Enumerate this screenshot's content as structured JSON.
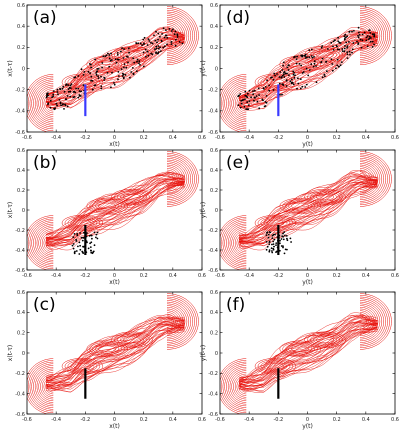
{
  "chart_data": [
    {
      "panel": "a",
      "type": "scatter",
      "label": "(a)",
      "xlabel": "x(t)",
      "ylabel": "x(t-τ)",
      "xlim": [
        -0.6,
        0.6
      ],
      "ylim": [
        -0.6,
        0.6
      ],
      "xticks": [
        "-0.6",
        "-0.4",
        "-0.2",
        "0",
        "0.2",
        "0.4",
        "0.6"
      ],
      "yticks": [
        "-0.6",
        "-0.4",
        "-0.2",
        "0",
        "0.2",
        "0.4",
        "0.6"
      ],
      "series": [
        {
          "kind": "attractor",
          "color": "#e8120c"
        },
        {
          "kind": "points",
          "color": "#000000",
          "spread": "scattered"
        },
        {
          "kind": "segment",
          "color": "#3a3aff",
          "x": -0.2,
          "y_range": [
            -0.45,
            -0.15
          ]
        }
      ]
    },
    {
      "panel": "b",
      "type": "scatter",
      "label": "(b)",
      "xlabel": "x(t)",
      "ylabel": "x(t-τ)",
      "xlim": [
        -0.6,
        0.6
      ],
      "ylim": [
        -0.6,
        0.6
      ],
      "xticks": [
        "-0.6",
        "-0.4",
        "-0.2",
        "0",
        "0.2",
        "0.4",
        "0.6"
      ],
      "yticks": [
        "-0.6",
        "-0.4",
        "-0.2",
        "0",
        "0.2",
        "0.4",
        "0.6"
      ],
      "series": [
        {
          "kind": "attractor",
          "color": "#e8120c"
        },
        {
          "kind": "points",
          "color": "#000000",
          "spread": "cluster",
          "center": [
            -0.2,
            -0.33
          ]
        },
        {
          "kind": "segment",
          "color": "#000000",
          "x": -0.2,
          "y_range": [
            -0.45,
            -0.15
          ]
        }
      ]
    },
    {
      "panel": "c",
      "type": "scatter",
      "label": "(c)",
      "xlabel": "x(t)",
      "ylabel": "x(t-τ)",
      "xlim": [
        -0.6,
        0.6
      ],
      "ylim": [
        -0.6,
        0.6
      ],
      "xticks": [
        "-0.6",
        "-0.4",
        "-0.2",
        "0",
        "0.2",
        "0.4",
        "0.6"
      ],
      "yticks": [
        "-0.6",
        "-0.4",
        "-0.2",
        "0",
        "0.2",
        "0.4",
        "0.6"
      ],
      "series": [
        {
          "kind": "attractor",
          "color": "#e8120c"
        },
        {
          "kind": "segment",
          "color": "#000000",
          "x": -0.2,
          "y_range": [
            -0.45,
            -0.15
          ]
        }
      ]
    },
    {
      "panel": "d",
      "type": "scatter",
      "label": "(d)",
      "xlabel": "y(t)",
      "ylabel": "y(t-τ)",
      "xlim": [
        -0.6,
        0.6
      ],
      "ylim": [
        -0.6,
        0.6
      ],
      "xticks": [
        "-0.6",
        "-0.4",
        "-0.2",
        "0",
        "0.2",
        "0.4",
        "0.6"
      ],
      "yticks": [
        "-0.6",
        "-0.4",
        "-0.2",
        "0",
        "0.2",
        "0.4",
        "0.6"
      ],
      "series": [
        {
          "kind": "attractor",
          "color": "#e8120c"
        },
        {
          "kind": "points",
          "color": "#000000",
          "spread": "scattered"
        },
        {
          "kind": "segment",
          "color": "#3a3aff",
          "x": -0.2,
          "y_range": [
            -0.45,
            -0.15
          ]
        }
      ]
    },
    {
      "panel": "e",
      "type": "scatter",
      "label": "(e)",
      "xlabel": "y(t)",
      "ylabel": "y(t-τ)",
      "xlim": [
        -0.6,
        0.6
      ],
      "ylim": [
        -0.6,
        0.6
      ],
      "xticks": [
        "-0.6",
        "-0.4",
        "-0.2",
        "0",
        "0.2",
        "0.4",
        "0.6"
      ],
      "yticks": [
        "-0.6",
        "-0.4",
        "-0.2",
        "0",
        "0.2",
        "0.4",
        "0.6"
      ],
      "series": [
        {
          "kind": "attractor",
          "color": "#e8120c"
        },
        {
          "kind": "points",
          "color": "#000000",
          "spread": "cluster",
          "center": [
            -0.2,
            -0.33
          ]
        },
        {
          "kind": "segment",
          "color": "#000000",
          "x": -0.2,
          "y_range": [
            -0.45,
            -0.15
          ]
        }
      ]
    },
    {
      "panel": "f",
      "type": "scatter",
      "label": "(f)",
      "xlabel": "y(t)",
      "ylabel": "y(t-τ)",
      "xlim": [
        -0.6,
        0.6
      ],
      "ylim": [
        -0.6,
        0.6
      ],
      "xticks": [
        "-0.6",
        "-0.4",
        "-0.2",
        "0",
        "0.2",
        "0.4",
        "0.6"
      ],
      "yticks": [
        "-0.6",
        "-0.4",
        "-0.2",
        "0",
        "0.2",
        "0.4",
        "0.6"
      ],
      "series": [
        {
          "kind": "attractor",
          "color": "#e8120c"
        },
        {
          "kind": "segment",
          "color": "#000000",
          "x": -0.2,
          "y_range": [
            -0.45,
            -0.15
          ]
        }
      ]
    }
  ]
}
